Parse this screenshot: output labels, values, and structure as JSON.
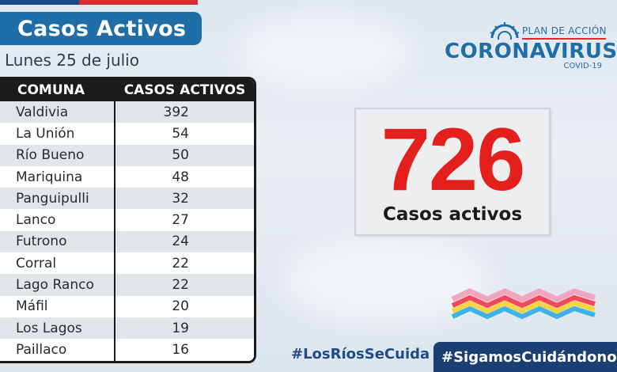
{
  "header": {
    "title": "Casos Activos",
    "date": "Lunes 25 de julio"
  },
  "table": {
    "columns": [
      "COMUNA",
      "CASOS ACTIVOS"
    ],
    "rows": [
      {
        "comuna": "Valdivia",
        "casos": "392"
      },
      {
        "comuna": "La Unión",
        "casos": "54"
      },
      {
        "comuna": "Río Bueno",
        "casos": "50"
      },
      {
        "comuna": "Mariquina",
        "casos": "48"
      },
      {
        "comuna": "Panguipulli",
        "casos": "32"
      },
      {
        "comuna": "Lanco",
        "casos": "27"
      },
      {
        "comuna": "Futrono",
        "casos": "24"
      },
      {
        "comuna": "Corral",
        "casos": "22"
      },
      {
        "comuna": "Lago Ranco",
        "casos": "22"
      },
      {
        "comuna": "Máfil",
        "casos": "20"
      },
      {
        "comuna": "Los Lagos",
        "casos": "19"
      },
      {
        "comuna": "Paillaco",
        "casos": "16"
      }
    ]
  },
  "logo": {
    "plan": "PLAN DE ACCIÓN",
    "main": "CORONAVIRUS",
    "sub": "COVID-19",
    "icon": "virus-icon"
  },
  "summary": {
    "total": "726",
    "label": "Casos activos"
  },
  "footer": {
    "hashtag_1": "#LosRíosSeCuida",
    "hashtag_2": "#SigamosCuidándonos"
  },
  "colors": {
    "title_bg": "#1f6ea8",
    "accent_red": "#e3201b",
    "brand_blue": "#1f6ea8",
    "footer_bg": "#1b3f73"
  }
}
